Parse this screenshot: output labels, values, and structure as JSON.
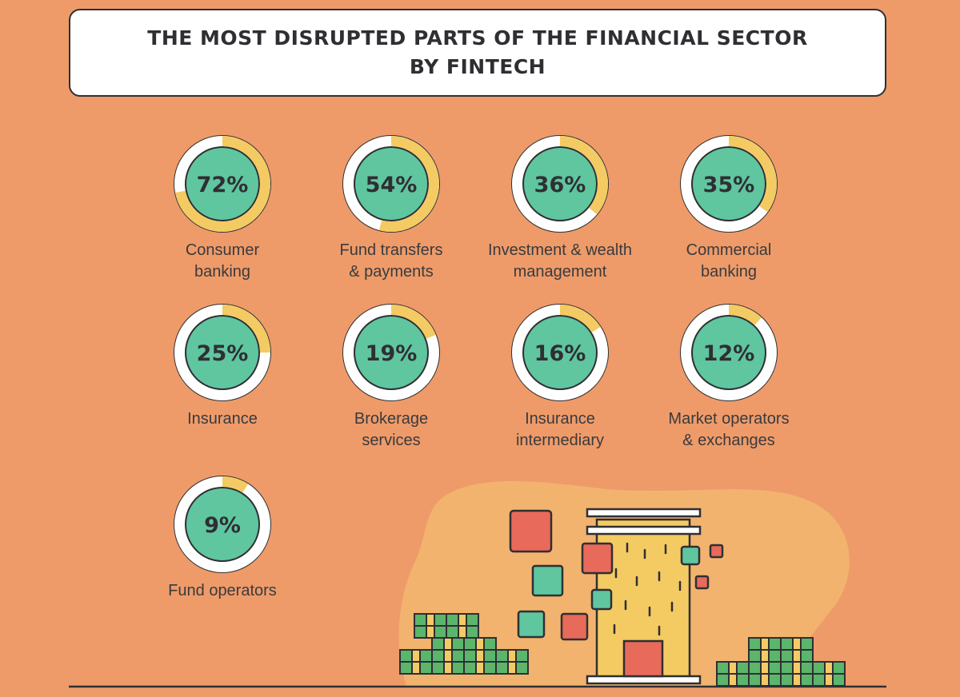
{
  "title": [
    "THE MOST DISRUPTED PARTS OF THE FINANCIAL SECTOR",
    "BY FINTECH"
  ],
  "colors": {
    "background": "#EE9B69",
    "ring_track": "#ffffff",
    "ring_fill": "#F4CA63",
    "ring_outline": "#2f2f33",
    "inner_disc": "#5FC6A0",
    "building": "#F4CA63",
    "tile_red": "#E86A5B",
    "tile_green": "#5FC6A0",
    "money": "#5BB56B"
  },
  "chart_data": {
    "type": "donut-grid",
    "title": "THE MOST DISRUPTED PARTS OF THE FINANCIAL SECTOR BY FINTECH",
    "unit": "%",
    "items": [
      {
        "label": "Consumer banking",
        "value": 72,
        "display": "72%",
        "label_lines": [
          "Consumer",
          "banking"
        ]
      },
      {
        "label": "Fund transfers & payments",
        "value": 54,
        "display": "54%",
        "label_lines": [
          "Fund transfers",
          "& payments"
        ]
      },
      {
        "label": "Investment & wealth management",
        "value": 36,
        "display": "36%",
        "label_lines": [
          "Investment & wealth",
          "management"
        ]
      },
      {
        "label": "Commercial banking",
        "value": 35,
        "display": "35%",
        "label_lines": [
          "Commercial",
          "banking"
        ]
      },
      {
        "label": "Insurance",
        "value": 25,
        "display": "25%",
        "label_lines": [
          "Insurance"
        ]
      },
      {
        "label": "Brokerage services",
        "value": 19,
        "display": "19%",
        "label_lines": [
          "Brokerage",
          "services"
        ]
      },
      {
        "label": "Insurance intermediary",
        "value": 16,
        "display": "16%",
        "label_lines": [
          "Insurance",
          "intermediary"
        ]
      },
      {
        "label": "Market operators & exchanges",
        "value": 12,
        "display": "12%",
        "label_lines": [
          "Market operators",
          "& exchanges"
        ]
      },
      {
        "label": "Fund operators",
        "value": 9,
        "display": "9%",
        "label_lines": [
          "Fund operators"
        ]
      }
    ]
  }
}
